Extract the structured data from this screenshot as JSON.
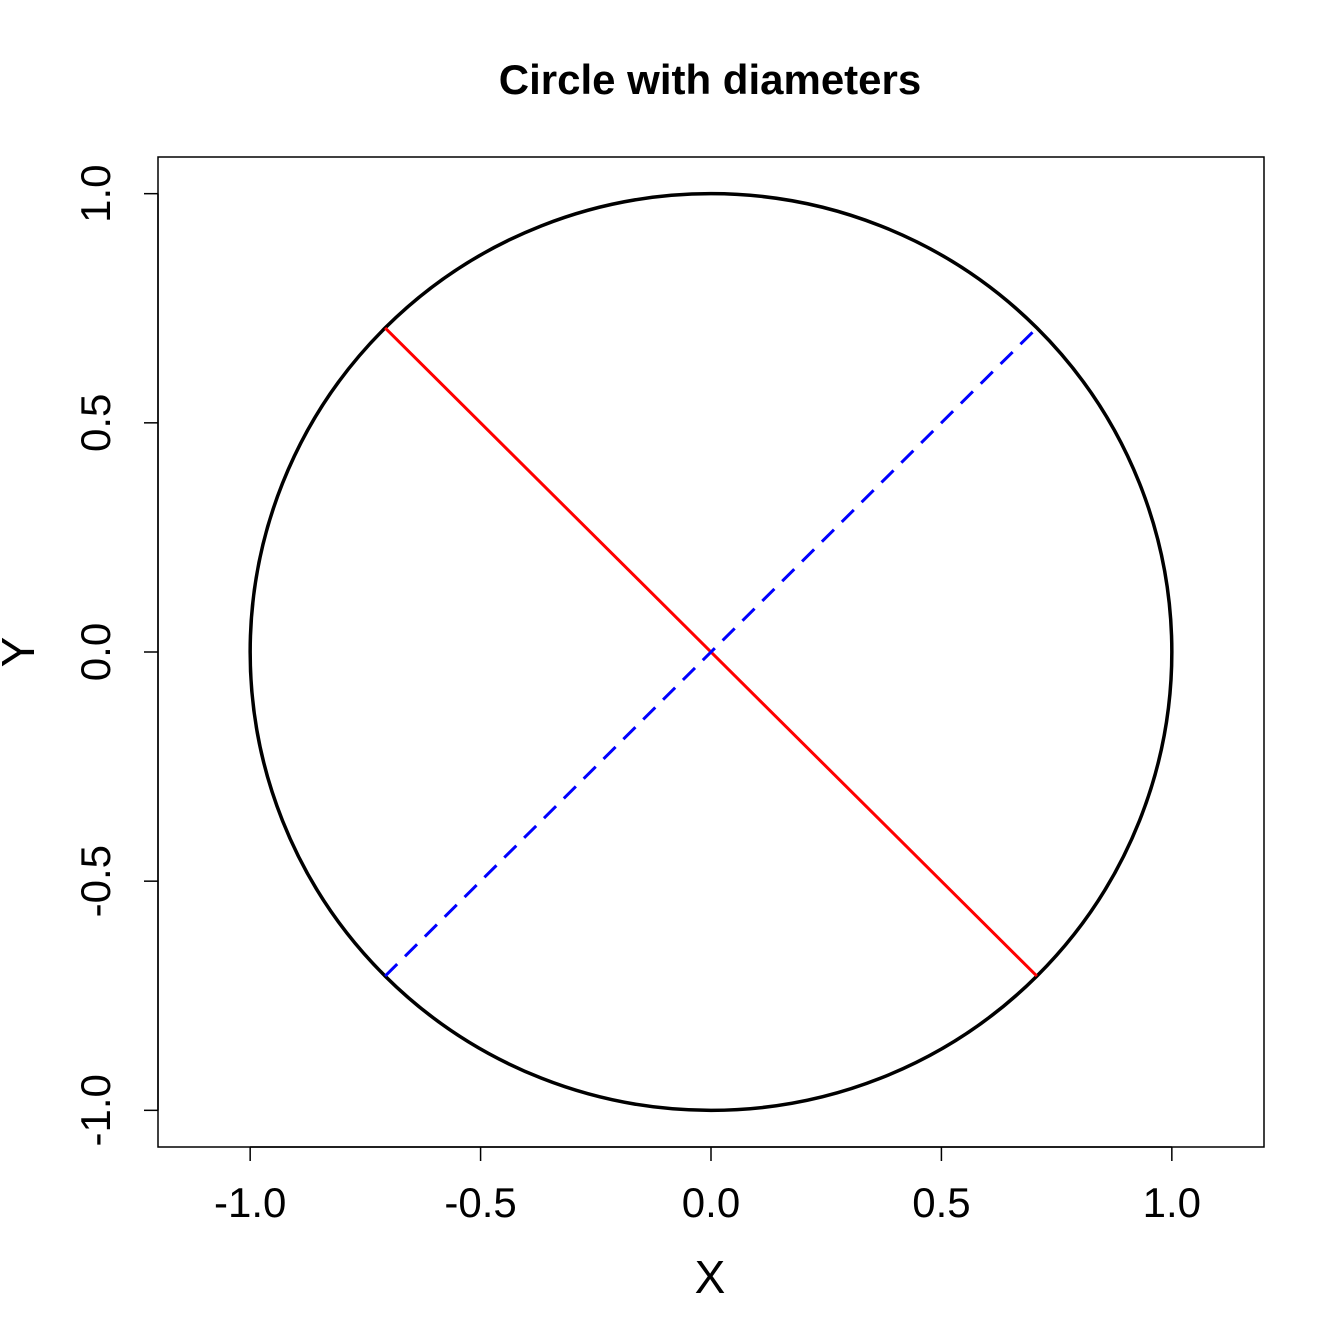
{
  "chart_data": {
    "type": "line",
    "title": "Circle with diameters",
    "xlabel": "X",
    "ylabel": "Y",
    "xlim": [
      -1.2,
      1.2
    ],
    "ylim": [
      -1.08,
      1.08
    ],
    "x_ticks": [
      -1.0,
      -0.5,
      0.0,
      0.5,
      1.0
    ],
    "x_tick_labels": [
      "-1.0",
      "-0.5",
      "0.0",
      "0.5",
      "1.0"
    ],
    "y_ticks": [
      -1.0,
      -0.5,
      0.0,
      0.5,
      1.0
    ],
    "y_tick_labels": [
      "-1.0",
      "-0.5",
      "0.0",
      "0.5",
      "1.0"
    ],
    "grid": false,
    "legend": "none",
    "series": [
      {
        "kind": "circle",
        "center": [
          0,
          0
        ],
        "radius": 1.0,
        "color": "#000000",
        "linestyle": "solid"
      },
      {
        "kind": "segment",
        "x": [
          -0.7071,
          0.7071
        ],
        "y": [
          0.7071,
          -0.7071
        ],
        "color": "#ff0000",
        "linestyle": "solid"
      },
      {
        "kind": "segment",
        "x": [
          -0.7071,
          0.7071
        ],
        "y": [
          -0.7071,
          0.7071
        ],
        "color": "#0000ff",
        "linestyle": "dashed"
      }
    ]
  }
}
